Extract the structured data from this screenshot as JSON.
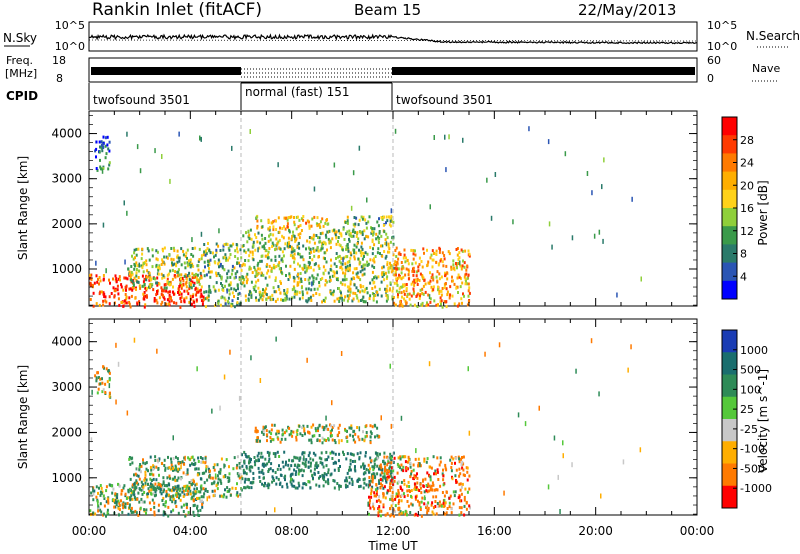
{
  "header": {
    "station": "Rankin Inlet (fitACF)",
    "beam": "Beam 15",
    "date": "22/May/2013"
  },
  "top_panels": {
    "nsky_label": "N.Sky",
    "nsearch_label": "N.Search",
    "freq_label_line1": "Freq.",
    "freq_label_line2": "[MHz]",
    "nave_label": "Nave",
    "cpid_label": "CPID",
    "noise_ticks": [
      "10^5",
      "10^0"
    ],
    "noise_ticks_right": [
      "10^5",
      "10^0"
    ],
    "freq_ticks": [
      "18",
      "8"
    ],
    "nave_ticks": [
      "60",
      "0"
    ]
  },
  "cpid_segments": [
    {
      "label": "twofsound 3501",
      "start": 0,
      "end": 6
    },
    {
      "label": "normal (fast) 151",
      "start": 6,
      "end": 12
    },
    {
      "label": "twofsound 3501",
      "start": 12,
      "end": 24
    }
  ],
  "power_colorbar": {
    "label": "Power [dB]",
    "ticks": [
      "28",
      "24",
      "20",
      "16",
      "12",
      "8",
      "4"
    ],
    "colors": [
      "#ff0000",
      "#ff3a00",
      "#ff7a00",
      "#ffae00",
      "#ffd21a",
      "#8fcf3a",
      "#3a9a4a",
      "#2a7a6a",
      "#2a55b4",
      "#0000ff"
    ]
  },
  "velocity_colorbar": {
    "label": "Velocity [m s^-1]",
    "ticks": [
      "1000",
      "500",
      "100",
      "25",
      "-25",
      "-100",
      "-500",
      "-1000"
    ],
    "colors": [
      "#1a3cb4",
      "#1a6e6e",
      "#2e8b57",
      "#55c83a",
      "#c8c8c8",
      "#ffae00",
      "#ff7a00",
      "#ff0000"
    ]
  },
  "chart_data": [
    {
      "type": "heatmap",
      "title": "",
      "xlabel": "Time UT",
      "ylabel": "Slant Range [km]",
      "x_ticks": [
        "00:00",
        "04:00",
        "08:00",
        "12:00",
        "16:00",
        "20:00",
        "00:00"
      ],
      "y_ticks": [
        "1000",
        "2000",
        "3000",
        "4000"
      ],
      "xlim": [
        0,
        24
      ],
      "ylim": [
        180,
        4500
      ],
      "value_label": "Power [dB]",
      "regions": [
        {
          "x": [
            0,
            4.5
          ],
          "y": [
            180,
            900
          ],
          "value": 26
        },
        {
          "x": [
            1.5,
            4.5
          ],
          "y": [
            600,
            1500
          ],
          "value": 14
        },
        {
          "x": [
            4.5,
            6
          ],
          "y": [
            180,
            1600
          ],
          "value": 12
        },
        {
          "x": [
            6,
            12
          ],
          "y": [
            300,
            1900
          ],
          "value": 14
        },
        {
          "x": [
            6.5,
            9.5
          ],
          "y": [
            1900,
            2200
          ],
          "value": 18
        },
        {
          "x": [
            10,
            12
          ],
          "y": [
            1900,
            2200
          ],
          "value": 12
        },
        {
          "x": [
            12,
            15
          ],
          "y": [
            180,
            1500
          ],
          "value": 20
        },
        {
          "x": [
            0.2,
            0.8
          ],
          "y": [
            3200,
            4000
          ],
          "value": 6
        }
      ]
    },
    {
      "type": "heatmap",
      "title": "",
      "xlabel": "Time UT",
      "ylabel": "Slant Range [km]",
      "x_ticks": [
        "00:00",
        "04:00",
        "08:00",
        "12:00",
        "16:00",
        "20:00",
        "00:00"
      ],
      "y_ticks": [
        "1000",
        "2000",
        "3000",
        "4000"
      ],
      "xlim": [
        0,
        24
      ],
      "ylim": [
        180,
        4500
      ],
      "value_label": "Velocity [m s^-1]",
      "regions": [
        {
          "x": [
            0,
            4.5
          ],
          "y": [
            180,
            900
          ],
          "value": 100
        },
        {
          "x": [
            1.5,
            6
          ],
          "y": [
            600,
            1500
          ],
          "value": 100
        },
        {
          "x": [
            6,
            12
          ],
          "y": [
            800,
            1600
          ],
          "value": 300
        },
        {
          "x": [
            6.5,
            11.5
          ],
          "y": [
            1800,
            2200
          ],
          "value": 0
        },
        {
          "x": [
            11,
            15
          ],
          "y": [
            180,
            1500
          ],
          "value": -150
        },
        {
          "x": [
            0.2,
            0.8
          ],
          "y": [
            2800,
            3500
          ],
          "value": 0
        }
      ]
    }
  ]
}
